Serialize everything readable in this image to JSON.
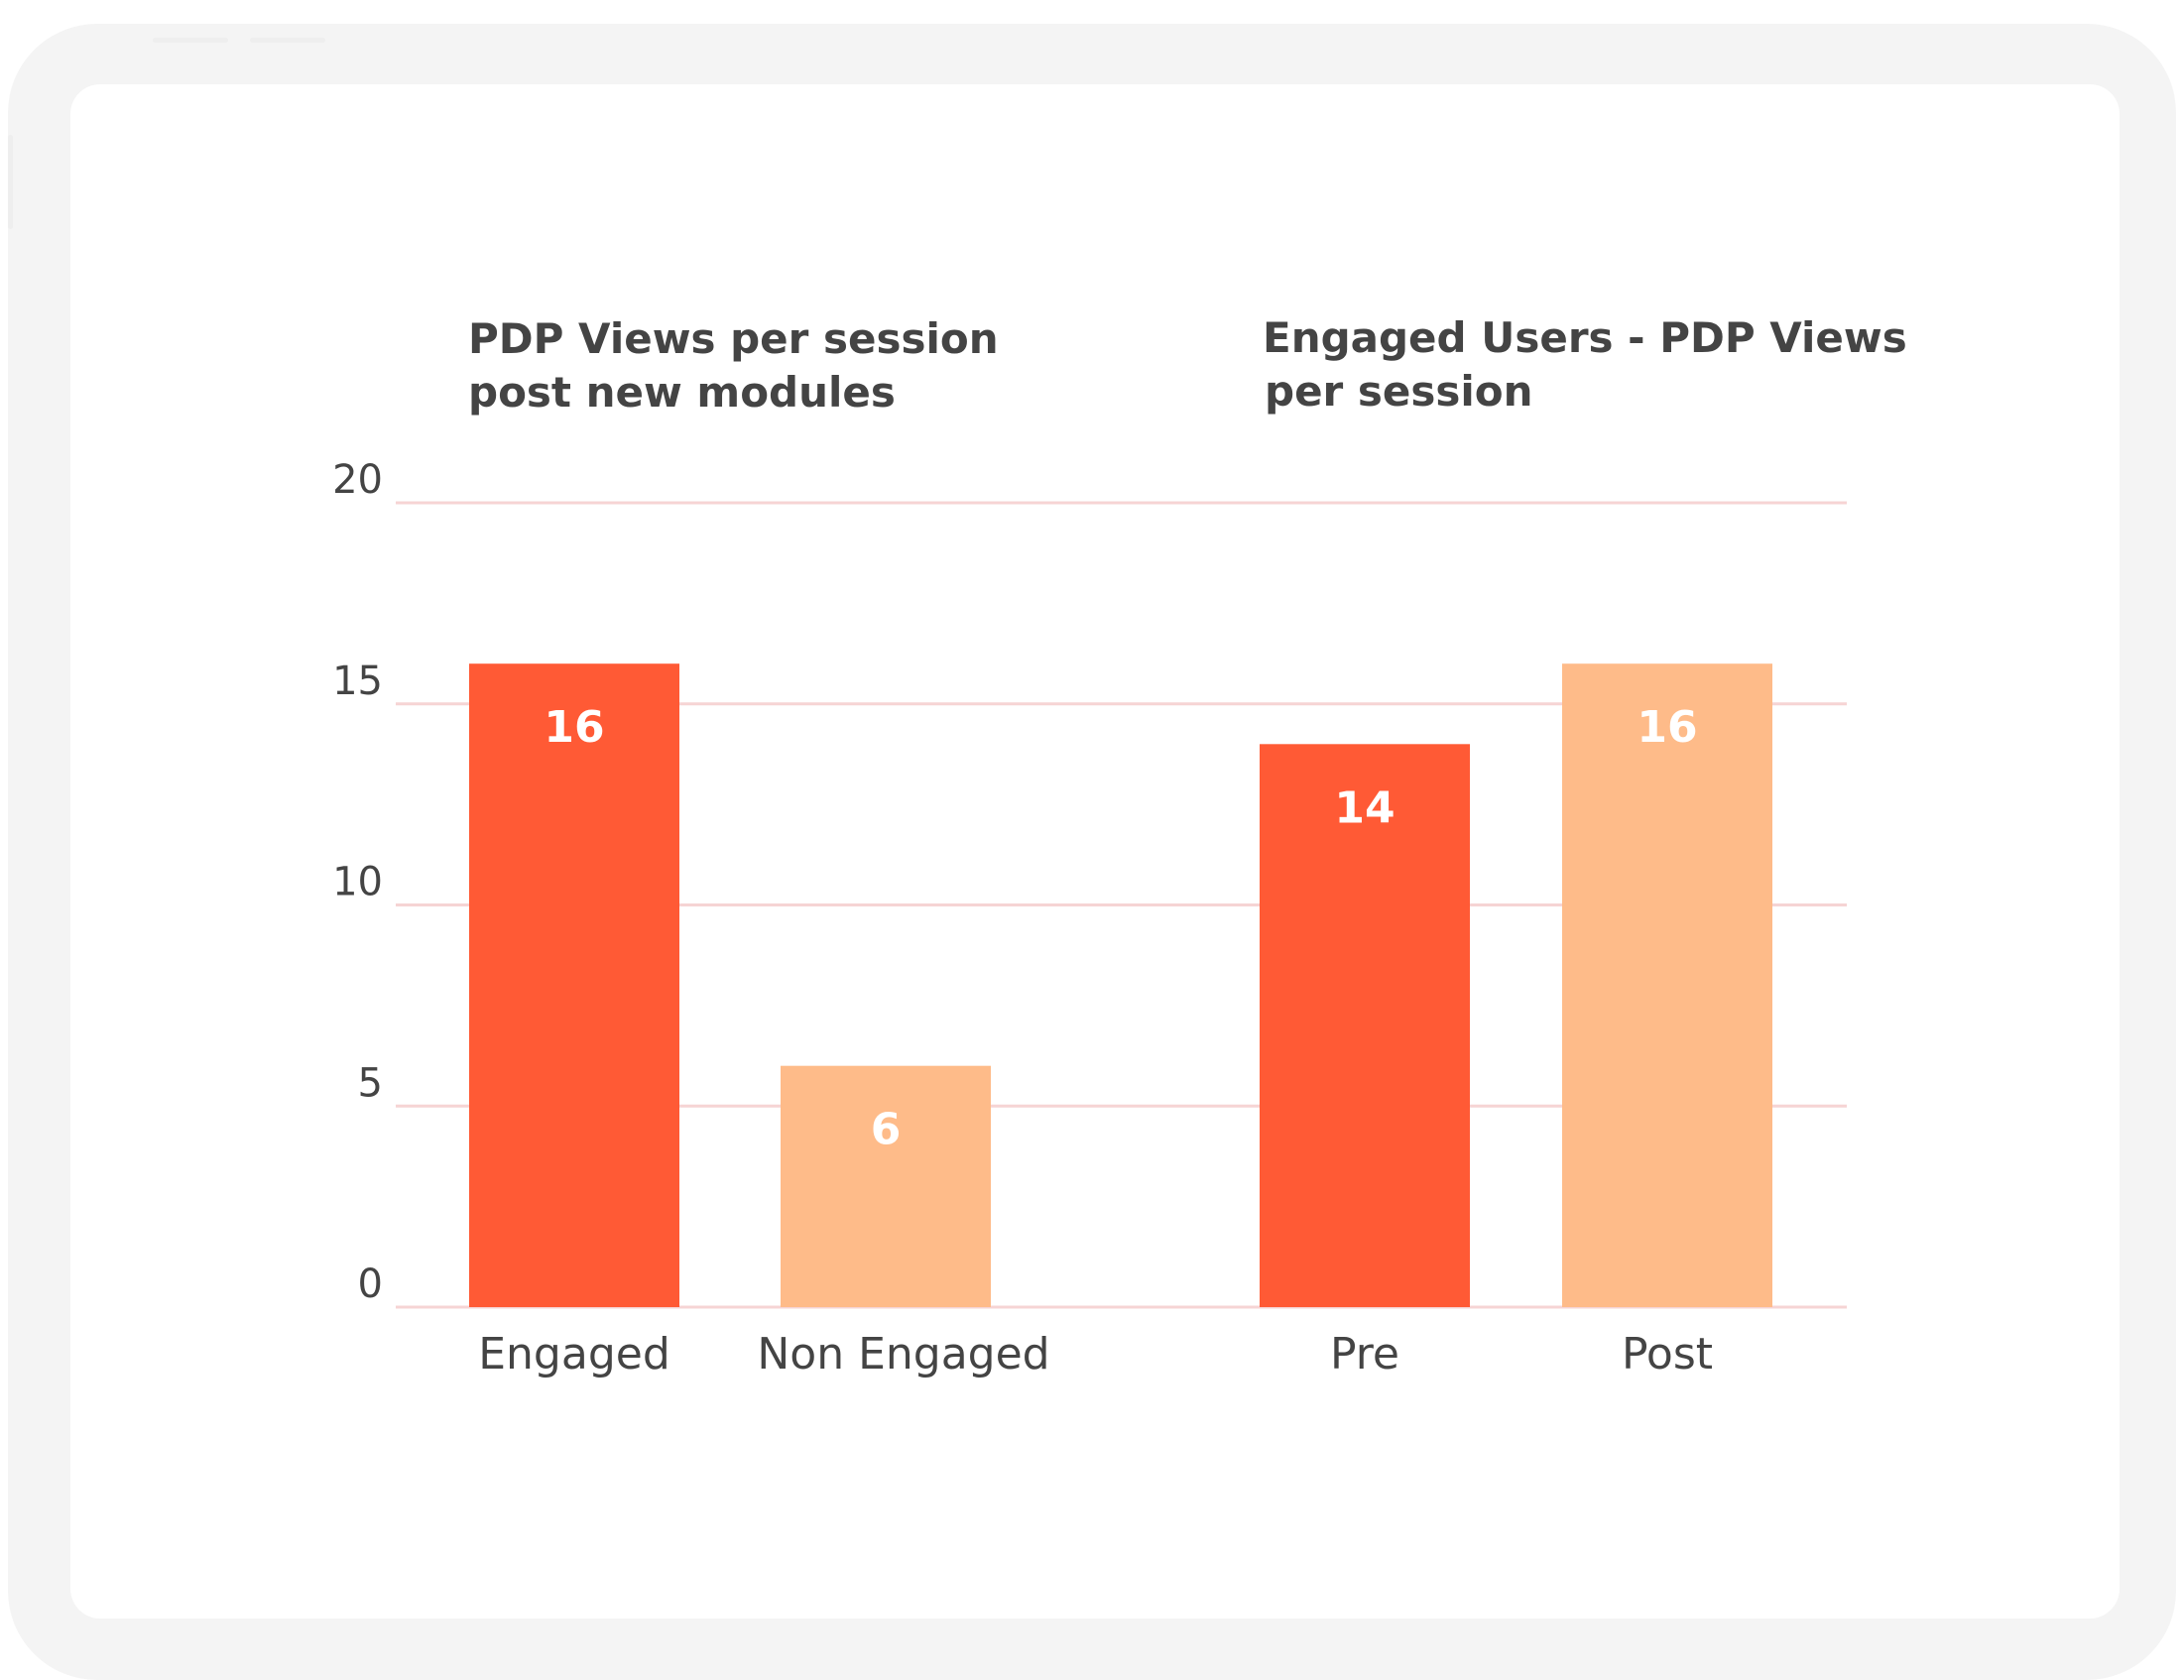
{
  "colors": {
    "primary": "#ff5a35",
    "secondary": "#febb89",
    "grid": "#f6d4d4",
    "text": "#444444"
  },
  "chart_data": [
    {
      "type": "bar",
      "title_lines": [
        "PDP Views per session",
        "post new modules"
      ],
      "categories": [
        "Engaged",
        "Non Engaged"
      ],
      "values": [
        16,
        6
      ],
      "data_labels": [
        "16",
        "6"
      ],
      "bar_colors": [
        "#ff5a35",
        "#febb89"
      ],
      "ylim": [
        0,
        20
      ],
      "yticks": [
        0,
        5,
        10,
        15,
        20
      ],
      "grid": true
    },
    {
      "type": "bar",
      "title_lines": [
        "Engaged Users - PDP Views",
        "per session"
      ],
      "categories": [
        "Pre",
        "Post"
      ],
      "values": [
        14,
        16
      ],
      "data_labels": [
        "14",
        "16"
      ],
      "bar_colors": [
        "#ff5a35",
        "#febb89"
      ],
      "ylim": [
        0,
        20
      ],
      "yticks": [
        0,
        5,
        10,
        15,
        20
      ],
      "grid": true
    }
  ]
}
